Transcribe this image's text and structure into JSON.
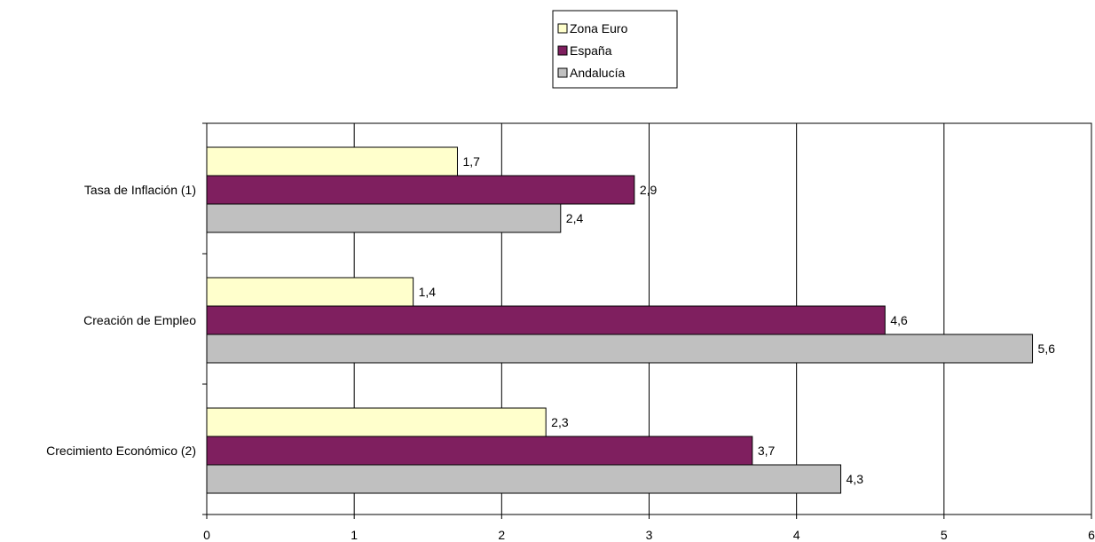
{
  "chart_data": {
    "type": "bar",
    "orientation": "horizontal",
    "categories": [
      "Tasa de Inflación (1)",
      "Creación de Empleo",
      "Crecimiento Económico (2)"
    ],
    "series": [
      {
        "name": "Zona Euro",
        "color": "#FFFFCC",
        "values": [
          1.7,
          1.4,
          2.3
        ],
        "labels": [
          "1,7",
          "1,4",
          "2,3"
        ]
      },
      {
        "name": "España",
        "color": "#7F1F5F",
        "values": [
          2.9,
          4.6,
          3.7
        ],
        "labels": [
          "2,9",
          "4,6",
          "3,7"
        ]
      },
      {
        "name": "Andalucía",
        "color": "#C0C0C0",
        "values": [
          2.4,
          5.6,
          4.3
        ],
        "labels": [
          "2,4",
          "5,6",
          "4,3"
        ]
      }
    ],
    "xlim": [
      0,
      6
    ],
    "xticks": [
      0,
      1,
      2,
      3,
      4,
      5,
      6
    ],
    "xtick_labels": [
      "0",
      "1",
      "2",
      "3",
      "4",
      "5",
      "6"
    ],
    "grid": "vertical",
    "legend_position": "top-center"
  }
}
